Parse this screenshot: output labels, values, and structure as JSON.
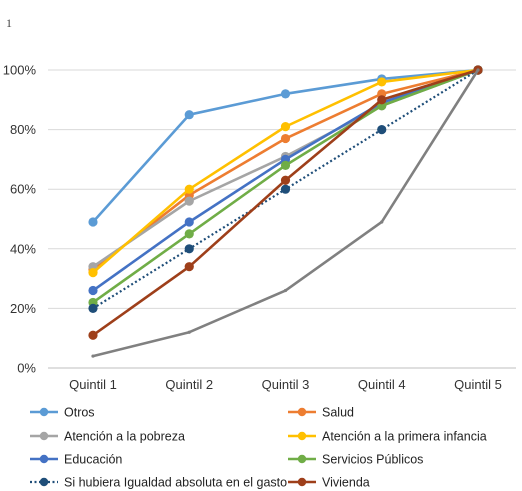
{
  "corner_mark": "1",
  "chart_data": {
    "type": "line",
    "title": "",
    "xlabel": "",
    "ylabel": "",
    "categories": [
      "Quintil 1",
      "Quintil 2",
      "Quintil 3",
      "Quintil 4",
      "Quintil 5"
    ],
    "ylim": [
      0,
      100
    ],
    "yticks": [
      "0%",
      "20%",
      "40%",
      "60%",
      "80%",
      "100%"
    ],
    "grid": "horizontal",
    "legend_position": "bottom",
    "series": [
      {
        "name": "Otros",
        "color": "#5b9bd5",
        "style": "solid",
        "marker": true,
        "values": [
          49,
          85,
          92,
          97,
          100
        ]
      },
      {
        "name": "Salud",
        "color": "#ed7d31",
        "style": "solid",
        "marker": true,
        "values": [
          33,
          58,
          77,
          92,
          100
        ]
      },
      {
        "name": "Atención a la pobreza",
        "color": "#a5a5a5",
        "style": "solid",
        "marker": true,
        "values": [
          34,
          56,
          71,
          88,
          100
        ]
      },
      {
        "name": "Atención a la primera infancia",
        "color": "#ffc000",
        "style": "solid",
        "marker": true,
        "values": [
          32,
          60,
          81,
          96,
          100
        ]
      },
      {
        "name": "Educación",
        "color": "#4472c4",
        "style": "solid",
        "marker": true,
        "values": [
          26,
          49,
          70,
          89,
          100
        ]
      },
      {
        "name": "Servicios Públicos",
        "color": "#70ad47",
        "style": "solid",
        "marker": true,
        "values": [
          22,
          45,
          68,
          88,
          100
        ]
      },
      {
        "name": "Si hubiera Igualdad absoluta  en el gasto",
        "color": "#1f4e79",
        "style": "dotted",
        "marker": true,
        "values": [
          20,
          40,
          60,
          80,
          100
        ]
      },
      {
        "name": "Vivienda",
        "color": "#9e3f1a",
        "style": "solid",
        "marker": true,
        "values": [
          11,
          34,
          63,
          90,
          100
        ]
      },
      {
        "name": "",
        "color": "#808080",
        "style": "solid",
        "marker": false,
        "values": [
          4,
          12,
          26,
          49,
          100
        ]
      }
    ]
  }
}
